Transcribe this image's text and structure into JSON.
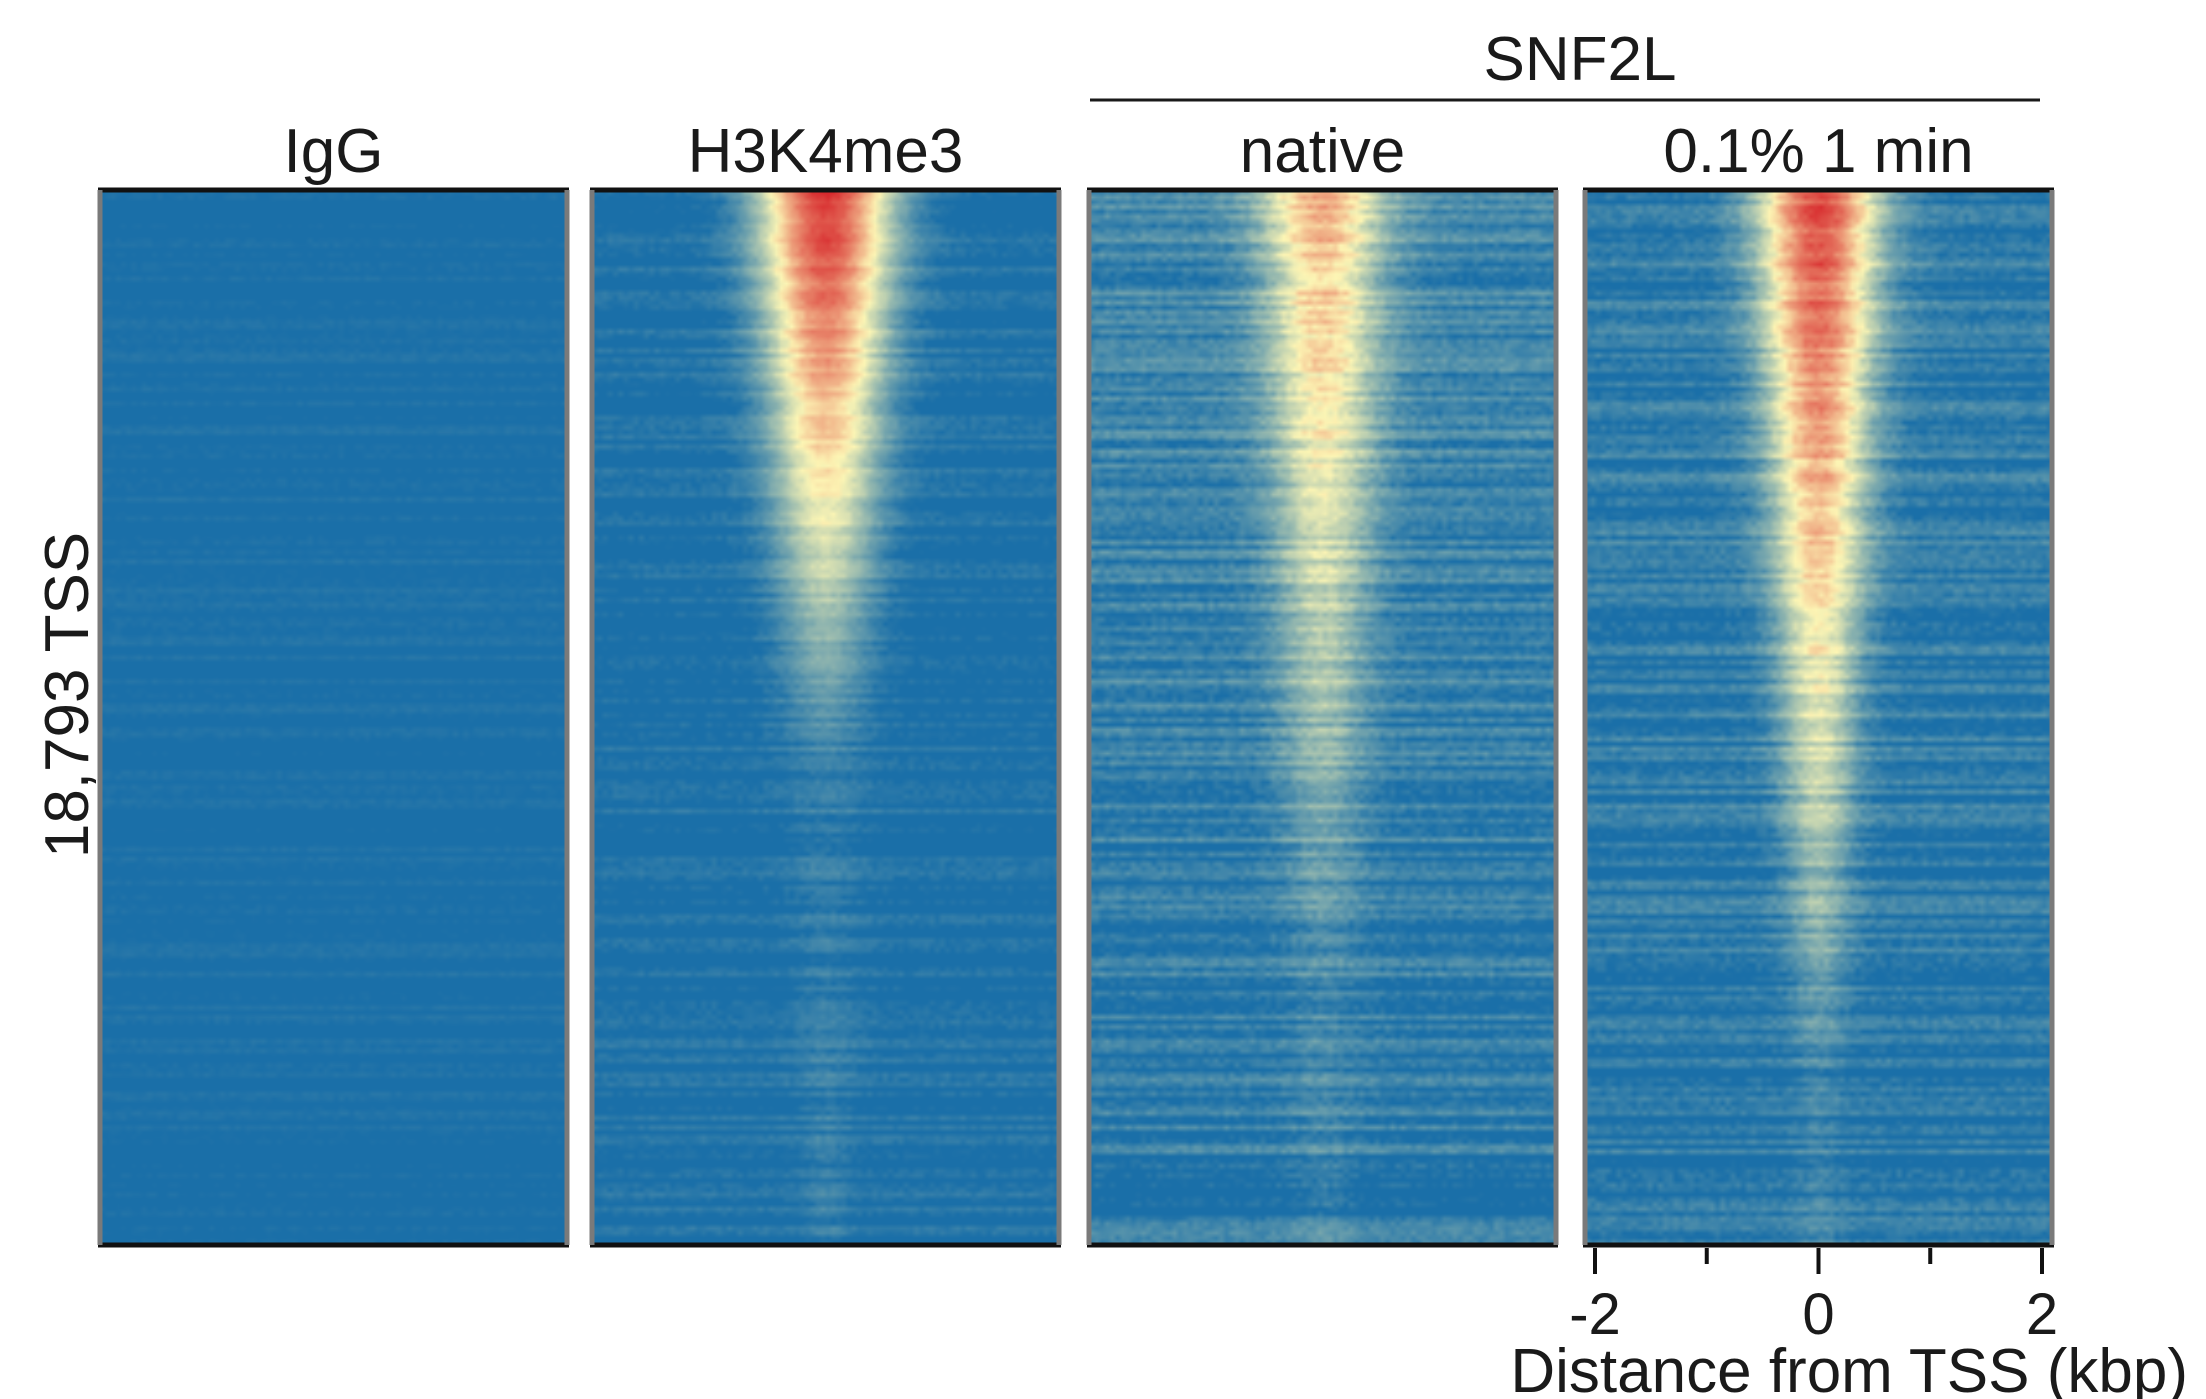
{
  "chart_data": {
    "type": "heatmap",
    "panels": [
      {
        "title": "IgG",
        "signal": "background"
      },
      {
        "title": "H3K4me3",
        "signal": "strong-narrow"
      },
      {
        "title": "native",
        "signal": "weak-broad"
      },
      {
        "title": "0.1% 1 min",
        "signal": "medium-broad"
      }
    ],
    "group_label": "SNF2L",
    "group_panels": [
      "native",
      "0.1% 1 min"
    ],
    "ylabel": "18,793 TSS",
    "row_count": 18793,
    "xlabel": "Distance from TSS (kbp)",
    "xlim": [
      -2,
      2
    ],
    "x_ticks": [
      -2,
      -1,
      0,
      1,
      2
    ],
    "x_tick_labels": [
      "-2",
      "0",
      "2"
    ],
    "colormap": {
      "low": "#1a6fa8",
      "mid": "#fdf6b5",
      "high": "#d7262b"
    }
  }
}
